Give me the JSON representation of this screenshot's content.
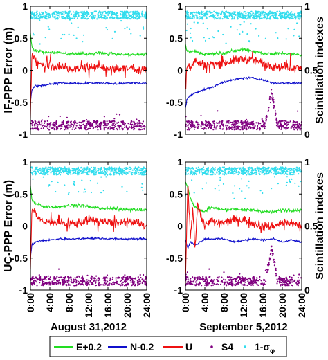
{
  "chart_data": [
    {
      "type": "line",
      "panel": "top-left",
      "date_label": "",
      "ylabel_left": "IF-PPP Error (m)",
      "ylabel_right": "",
      "yticks_left": [
        "1",
        "0.5",
        "0",
        "-0.5",
        "-1"
      ],
      "yticks_right": [],
      "xticks": [],
      "ylim_left": [
        -1,
        1
      ],
      "ylim_right": [
        0,
        1
      ],
      "xlim": [
        0,
        24
      ],
      "grid": false,
      "series": [
        {
          "name": "E+0.2",
          "axis": "left",
          "color": "#22dd22",
          "x": [
            0.0,
            0.3,
            1.0,
            2.0,
            3.0,
            4.0,
            6.0,
            8.0,
            10.0,
            12.0,
            14.0,
            16.0,
            18.0,
            20.0,
            22.0,
            24.0
          ],
          "values": [
            0.6,
            0.35,
            0.3,
            0.3,
            0.28,
            0.27,
            0.27,
            0.25,
            0.26,
            0.25,
            0.27,
            0.26,
            0.25,
            0.25,
            0.24,
            0.25
          ]
        },
        {
          "name": "N-0.2",
          "axis": "left",
          "color": "#1010cc",
          "x": [
            0.0,
            0.3,
            1.0,
            2.0,
            4.0,
            6.0,
            8.0,
            10.0,
            12.0,
            14.0,
            16.0,
            18.0,
            20.0,
            22.0,
            24.0
          ],
          "values": [
            -0.5,
            -0.3,
            -0.25,
            -0.24,
            -0.22,
            -0.2,
            -0.2,
            -0.21,
            -0.2,
            -0.2,
            -0.2,
            -0.21,
            -0.2,
            -0.2,
            -0.2
          ]
        },
        {
          "name": "U",
          "axis": "left",
          "color": "#ee1111",
          "x": [
            0.0,
            0.3,
            1.0,
            2.0,
            3.0,
            4.0,
            6.0,
            8.0,
            10.0,
            12.0,
            14.0,
            16.0,
            18.0,
            20.0,
            22.0,
            24.0
          ],
          "values": [
            -0.7,
            0.25,
            0.15,
            0.1,
            0.05,
            0.08,
            0.05,
            0.02,
            0.05,
            0.03,
            0.05,
            0.04,
            0.02,
            0.05,
            0.03,
            0.0
          ]
        },
        {
          "name": "S4",
          "axis": "right",
          "color": "#800080",
          "x": [
            0.0,
            24.0
          ],
          "values": [
            0.07,
            0.07
          ]
        },
        {
          "name": "1-σφ",
          "axis": "right",
          "color": "#33ddee",
          "x": [
            0.0,
            24.0
          ],
          "values": [
            0.96,
            0.96
          ]
        }
      ]
    },
    {
      "type": "line",
      "panel": "top-right",
      "date_label": "",
      "ylabel_left": "",
      "ylabel_right": "Scintillation indexes",
      "yticks_left": [
        "1",
        "0.5",
        "0",
        "-0.5",
        "-1"
      ],
      "yticks_right": [
        "1",
        "0.5",
        "0"
      ],
      "xticks": [],
      "ylim_left": [
        -1,
        1
      ],
      "ylim_right": [
        0,
        1
      ],
      "xlim": [
        0,
        24
      ],
      "grid": false,
      "series": [
        {
          "name": "E+0.2",
          "axis": "left",
          "color": "#22dd22",
          "x": [
            0.0,
            0.3,
            1.0,
            2.0,
            3.0,
            4.0,
            6.0,
            8.0,
            10.0,
            12.0,
            14.0,
            16.0,
            18.0,
            20.0,
            22.0,
            24.0
          ],
          "values": [
            0.4,
            0.3,
            0.28,
            0.3,
            0.27,
            0.25,
            0.26,
            0.27,
            0.3,
            0.33,
            0.3,
            0.27,
            0.25,
            0.27,
            0.25,
            0.24
          ]
        },
        {
          "name": "N-0.2",
          "axis": "left",
          "color": "#1010cc",
          "x": [
            0.0,
            0.3,
            1.0,
            2.0,
            4.0,
            6.0,
            8.0,
            10.0,
            12.0,
            14.0,
            16.0,
            18.0,
            20.0,
            22.0,
            24.0
          ],
          "values": [
            -0.6,
            -0.45,
            -0.4,
            -0.35,
            -0.3,
            -0.25,
            -0.18,
            -0.15,
            -0.12,
            -0.12,
            -0.15,
            -0.2,
            -0.2,
            -0.2,
            -0.2
          ]
        },
        {
          "name": "U",
          "axis": "left",
          "color": "#ee1111",
          "x": [
            0.0,
            0.3,
            1.0,
            2.0,
            3.0,
            4.0,
            6.0,
            8.0,
            10.0,
            12.0,
            14.0,
            16.0,
            18.0,
            20.0,
            22.0,
            24.0
          ],
          "values": [
            -0.3,
            0.1,
            0.05,
            0.15,
            0.1,
            0.08,
            0.1,
            0.12,
            0.15,
            0.18,
            0.15,
            0.12,
            0.08,
            0.05,
            0.05,
            0.05
          ]
        },
        {
          "name": "S4",
          "axis": "right",
          "color": "#800080",
          "x": [
            0.0,
            16.5,
            17.8,
            19.0,
            24.0
          ],
          "values": [
            0.07,
            0.07,
            0.33,
            0.07,
            0.07
          ]
        },
        {
          "name": "1-σφ",
          "axis": "right",
          "color": "#33ddee",
          "x": [
            0.0,
            24.0
          ],
          "values": [
            0.96,
            0.96
          ]
        }
      ]
    },
    {
      "type": "line",
      "panel": "bottom-left",
      "date_label": "August 31,2012",
      "ylabel_left": "UC-PPP Error (m)",
      "ylabel_right": "",
      "yticks_left": [
        "1",
        "0.5",
        "0",
        "-0.5",
        "-1"
      ],
      "yticks_right": [],
      "xticks": [
        "0:00",
        "4:00",
        "8:00",
        "12:00",
        "16:00",
        "20:00",
        "24:00"
      ],
      "ylim_left": [
        -1,
        1
      ],
      "ylim_right": [
        0,
        1
      ],
      "xlim": [
        0,
        24
      ],
      "grid": false,
      "series": [
        {
          "name": "E+0.2",
          "axis": "left",
          "color": "#22dd22",
          "x": [
            0.0,
            0.3,
            1.0,
            2.0,
            3.0,
            4.0,
            6.0,
            8.0,
            10.0,
            12.0,
            14.0,
            16.0,
            18.0,
            20.0,
            22.0,
            24.0
          ],
          "values": [
            0.65,
            0.4,
            0.35,
            0.33,
            0.3,
            0.3,
            0.3,
            0.32,
            0.33,
            0.3,
            0.28,
            0.27,
            0.27,
            0.26,
            0.25,
            0.25
          ]
        },
        {
          "name": "N-0.2",
          "axis": "left",
          "color": "#1010cc",
          "x": [
            0.0,
            0.3,
            1.0,
            2.0,
            4.0,
            6.0,
            8.0,
            10.0,
            12.0,
            14.0,
            16.0,
            18.0,
            20.0,
            22.0,
            24.0
          ],
          "values": [
            -0.5,
            -0.3,
            -0.25,
            -0.23,
            -0.22,
            -0.2,
            -0.2,
            -0.2,
            -0.19,
            -0.19,
            -0.2,
            -0.2,
            -0.2,
            -0.2,
            -0.2
          ]
        },
        {
          "name": "U",
          "axis": "left",
          "color": "#ee1111",
          "x": [
            0.0,
            0.3,
            1.0,
            2.0,
            3.0,
            4.0,
            6.0,
            8.0,
            10.0,
            12.0,
            14.0,
            16.0,
            18.0,
            20.0,
            22.0,
            24.0
          ],
          "values": [
            -0.7,
            0.3,
            0.2,
            0.1,
            0.05,
            0.08,
            0.05,
            0.03,
            0.05,
            0.1,
            0.08,
            0.05,
            0.05,
            0.05,
            0.05,
            0.0
          ]
        },
        {
          "name": "S4",
          "axis": "right",
          "color": "#800080",
          "x": [
            0.0,
            24.0
          ],
          "values": [
            0.07,
            0.07
          ]
        },
        {
          "name": "1-σφ",
          "axis": "right",
          "color": "#33ddee",
          "x": [
            0.0,
            24.0
          ],
          "values": [
            0.96,
            0.96
          ]
        }
      ]
    },
    {
      "type": "line",
      "panel": "bottom-right",
      "date_label": "September 5,2012",
      "ylabel_left": "",
      "ylabel_right": "Scintillation indexes",
      "yticks_left": [
        "1",
        "0.5",
        "0",
        "-0.5",
        "-1"
      ],
      "yticks_right": [
        "1",
        "0.5",
        "0"
      ],
      "xticks": [
        "0:00",
        "4:00",
        "8:00",
        "12:00",
        "16:00",
        "20:00",
        "24:00"
      ],
      "ylim_left": [
        -1,
        1
      ],
      "ylim_right": [
        0,
        1
      ],
      "xlim": [
        0,
        24
      ],
      "grid": false,
      "series": [
        {
          "name": "E+0.2",
          "axis": "left",
          "color": "#22dd22",
          "x": [
            0.0,
            0.5,
            1.0,
            1.5,
            2.0,
            3.0,
            4.0,
            5.0,
            6.0,
            8.0,
            10.0,
            12.0,
            14.0,
            16.0,
            18.0,
            20.0,
            22.0,
            24.0
          ],
          "values": [
            0.7,
            0.6,
            0.45,
            0.35,
            0.3,
            0.25,
            0.22,
            0.3,
            0.28,
            0.25,
            0.27,
            0.25,
            0.25,
            0.23,
            0.22,
            0.25,
            0.25,
            0.25
          ]
        },
        {
          "name": "N-0.2",
          "axis": "left",
          "color": "#1010cc",
          "x": [
            0.0,
            0.5,
            1.0,
            2.0,
            3.0,
            4.0,
            6.0,
            8.0,
            10.0,
            12.0,
            14.0,
            16.0,
            18.0,
            20.0,
            22.0,
            24.0
          ],
          "values": [
            -0.2,
            -0.35,
            -0.25,
            -0.3,
            -0.25,
            -0.2,
            -0.2,
            -0.2,
            -0.25,
            -0.22,
            -0.2,
            -0.22,
            -0.2,
            -0.25,
            -0.22,
            -0.25
          ]
        },
        {
          "name": "U",
          "axis": "left",
          "color": "#ee1111",
          "x": [
            0.0,
            0.5,
            1.0,
            1.5,
            2.0,
            2.5,
            3.0,
            4.0,
            5.0,
            6.0,
            8.0,
            10.0,
            12.0,
            14.0,
            16.0,
            18.0,
            20.0,
            22.0,
            24.0
          ],
          "values": [
            -0.9,
            0.7,
            -0.2,
            0.3,
            -0.4,
            0.4,
            0.2,
            0.0,
            0.1,
            0.05,
            0.05,
            0.1,
            0.1,
            0.05,
            0.0,
            0.0,
            0.05,
            0.05,
            0.0
          ]
        },
        {
          "name": "S4",
          "axis": "right",
          "color": "#800080",
          "x": [
            0.0,
            16.5,
            17.8,
            19.0,
            24.0
          ],
          "values": [
            0.07,
            0.07,
            0.33,
            0.07,
            0.07
          ]
        },
        {
          "name": "1-σφ",
          "axis": "right",
          "color": "#33ddee",
          "x": [
            0.0,
            24.0
          ],
          "values": [
            0.96,
            0.96
          ]
        }
      ]
    }
  ],
  "legend": {
    "placement": "bottom",
    "entries": [
      {
        "label": "E+0.2",
        "color": "#22dd22",
        "marker": "line"
      },
      {
        "label": "N-0.2",
        "color": "#1010cc",
        "marker": "line"
      },
      {
        "label": "U",
        "color": "#ee1111",
        "marker": "line"
      },
      {
        "label": "S4",
        "color": "#800080",
        "marker": "dot"
      },
      {
        "label": "1-σφ",
        "color": "#33ddee",
        "marker": "dot"
      }
    ]
  }
}
